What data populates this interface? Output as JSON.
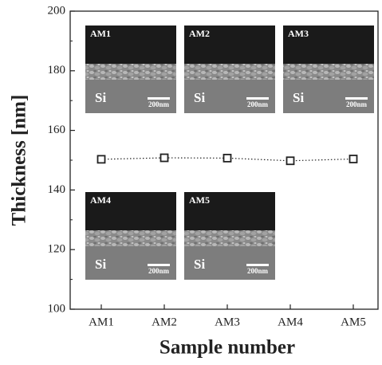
{
  "chart_data": {
    "type": "line",
    "y_label": "Thickness [nm]",
    "x_label": "Sample number",
    "categories": [
      "AM1",
      "AM2",
      "AM3",
      "AM4",
      "AM5"
    ],
    "values": [
      150.3,
      150.8,
      150.7,
      149.8,
      150.4
    ],
    "color": "#222222",
    "ylim": [
      100,
      200
    ],
    "yticks": [
      100,
      120,
      140,
      160,
      180,
      200
    ],
    "insets": [
      {
        "label": "AM1",
        "substrate": "Si",
        "scale": "200nm"
      },
      {
        "label": "AM2",
        "substrate": "Si",
        "scale": "200nm"
      },
      {
        "label": "AM3",
        "substrate": "Si",
        "scale": "200nm"
      },
      {
        "label": "AM4",
        "substrate": "Si",
        "scale": "200nm"
      },
      {
        "label": "AM5",
        "substrate": "Si",
        "scale": "200nm"
      }
    ]
  }
}
